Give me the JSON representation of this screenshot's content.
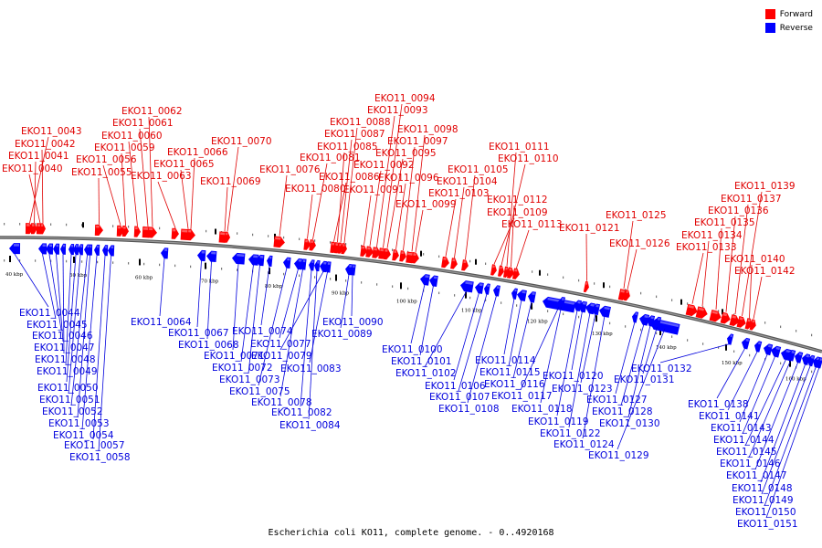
{
  "legend": {
    "forward_label": "Forward",
    "reverse_label": "Reverse",
    "forward_color": "#ff0000",
    "reverse_color": "#0000ff"
  },
  "caption": "Escherichia coli KO11, complete genome. - 0..4920168",
  "scale_labels": [
    "40 kbp",
    "50 kbp",
    "60 kbp",
    "70 kbp",
    "80 kbp",
    "90 kbp",
    "100 kbp",
    "110 kbp",
    "120 kbp",
    "130 kbp",
    "140 kbp",
    "150 kbp",
    "160 kbp"
  ],
  "forward_genes": [
    "EKO11_0040",
    "EKO11_0041",
    "EKO11_0042",
    "EKO11_0043",
    "EKO11_0055",
    "EKO11_0056",
    "EKO11_0059",
    "EKO11_0060",
    "EKO11_0061",
    "EKO11_0062",
    "EKO11_0063",
    "EKO11_0065",
    "EKO11_0066",
    "EKO11_0069",
    "EKO11_0070",
    "EKO11_0076",
    "EKO11_0080",
    "EKO11_0081",
    "EKO11_0085",
    "EKO11_0086",
    "EKO11_0087",
    "EKO11_0088",
    "EKO11_0091",
    "EKO11_0092",
    "EKO11_0093",
    "EKO11_0094",
    "EKO11_0095",
    "EKO11_0096",
    "EKO11_0097",
    "EKO11_0098",
    "EKO11_0099",
    "EKO11_0103",
    "EKO11_0104",
    "EKO11_0105",
    "EKO11_0109",
    "EKO11_0110",
    "EKO11_0111",
    "EKO11_0112",
    "EKO11_0113",
    "EKO11_0121",
    "EKO11_0125",
    "EKO11_0126",
    "EKO11_0133",
    "EKO11_0134",
    "EKO11_0135",
    "EKO11_0136",
    "EKO11_0137",
    "EKO11_0139",
    "EKO11_0140",
    "EKO11_0142"
  ],
  "reverse_genes": [
    "EKO11_0044",
    "EKO11_0045",
    "EKO11_0046",
    "EKO11_0047",
    "EKO11_0048",
    "EKO11_0049",
    "EKO11_0050",
    "EKO11_0051",
    "EKO11_0052",
    "EKO11_0053",
    "EKO11_0054",
    "EKO11_0057",
    "EKO11_0058",
    "EKO11_0064",
    "EKO11_0067",
    "EKO11_0068",
    "EKO11_0071",
    "EKO11_0072",
    "EKO11_0073",
    "EKO11_0074",
    "EKO11_0075",
    "EKO11_0077",
    "EKO11_0078",
    "EKO11_0079",
    "EKO11_0082",
    "EKO11_0083",
    "EKO11_0084",
    "EKO11_0089",
    "EKO11_0090",
    "EKO11_0100",
    "EKO11_0101",
    "EKO11_0102",
    "EKO11_0106",
    "EKO11_0107",
    "EKO11_0108",
    "EKO11_0114",
    "EKO11_0115",
    "EKO11_0116",
    "EKO11_0117",
    "EKO11_0118",
    "EKO11_0119",
    "EKO11_0120",
    "EKO11_0122",
    "EKO11_0123",
    "EKO11_0124",
    "EKO11_0127",
    "EKO11_0128",
    "EKO11_0129",
    "EKO11_0130",
    "EKO11_0131",
    "EKO11_0132",
    "EKO11_0138",
    "EKO11_0141",
    "EKO11_0143",
    "EKO11_0144",
    "EKO11_0145",
    "EKO11_0146",
    "EKO11_0147",
    "EKO11_0148",
    "EKO11_0149",
    "EKO11_0150",
    "EKO11_0151"
  ]
}
